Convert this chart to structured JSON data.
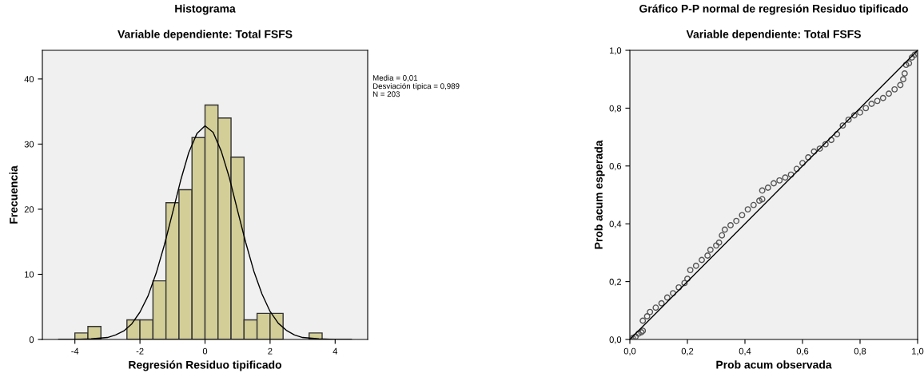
{
  "chart_data": [
    {
      "type": "histogram",
      "title": "Histograma",
      "subtitle": "Variable dependiente: Total FSFS",
      "xlabel": "Regresión Residuo tipificado",
      "ylabel": "Frecuencia",
      "series": [
        {
          "color": "#d3ce97",
          "bins": [
            -4.0,
            -3.6,
            -3.2,
            -2.8,
            -2.4,
            -2.0,
            -1.6,
            -1.2,
            -0.8,
            -0.4,
            0.0,
            0.4,
            0.8,
            1.2,
            1.6,
            2.0,
            2.4,
            2.8,
            3.2,
            3.6
          ],
          "values": [
            1,
            2,
            0,
            0,
            3,
            3,
            9,
            21,
            23,
            31,
            36,
            34,
            28,
            3,
            4,
            4,
            0,
            0,
            1
          ]
        },
        {
          "type": "line",
          "color": "#000000",
          "x": [
            -4.5,
            -4.0,
            -3.5,
            -3.0,
            -2.75,
            -2.5,
            -2.25,
            -2.0,
            -1.75,
            -1.5,
            -1.25,
            -1.0,
            -0.75,
            -0.5,
            -0.25,
            0.0,
            0.25,
            0.5,
            0.75,
            1.0,
            1.25,
            1.5,
            1.75,
            2.0,
            2.25,
            2.5,
            2.75,
            3.0,
            3.5,
            4.0,
            4.5
          ],
          "values": [
            0.0,
            0.0,
            0.1,
            0.3,
            0.7,
            1.3,
            2.4,
            4.2,
            6.7,
            10.2,
            14.5,
            19.4,
            24.4,
            28.7,
            31.6,
            32.8,
            31.8,
            28.9,
            24.8,
            19.8,
            14.9,
            10.5,
            7.0,
            4.3,
            2.5,
            1.4,
            0.7,
            0.3,
            0.1,
            0.0,
            0.0
          ]
        }
      ],
      "xlim": [
        -5,
        5
      ],
      "xticks": [
        -4,
        -2,
        0,
        2,
        4
      ],
      "ylim": [
        0,
        44.4
      ],
      "yticks": [
        0,
        10,
        20,
        30,
        40
      ],
      "grid": false,
      "legend": false,
      "annotations": [
        "Media = 0,01",
        "Desviación típica = 0,989",
        "N = 203"
      ]
    },
    {
      "type": "scatter",
      "title": "Gráfico P-P normal de regresión Residuo tipificado",
      "subtitle": "Variable dependiente: Total FSFS",
      "xlabel": "Prob acum observada",
      "ylabel": "Prob acum esperada",
      "series": [
        {
          "color": "#555555",
          "marker": "circle",
          "x": [
            0.0,
            0.01,
            0.02,
            0.03,
            0.04,
            0.045,
            0.045,
            0.06,
            0.07,
            0.09,
            0.11,
            0.13,
            0.15,
            0.17,
            0.19,
            0.2,
            0.21,
            0.23,
            0.25,
            0.27,
            0.28,
            0.3,
            0.31,
            0.32,
            0.33,
            0.35,
            0.37,
            0.39,
            0.41,
            0.43,
            0.45,
            0.46,
            0.46,
            0.48,
            0.5,
            0.52,
            0.54,
            0.56,
            0.58,
            0.6,
            0.62,
            0.64,
            0.66,
            0.68,
            0.7,
            0.72,
            0.74,
            0.76,
            0.78,
            0.8,
            0.82,
            0.84,
            0.86,
            0.88,
            0.9,
            0.92,
            0.94,
            0.95,
            0.955,
            0.96,
            0.97,
            0.98,
            0.99,
            1.0
          ],
          "values": [
            0.0,
            0.005,
            0.01,
            0.02,
            0.025,
            0.03,
            0.065,
            0.08,
            0.095,
            0.11,
            0.125,
            0.145,
            0.16,
            0.18,
            0.195,
            0.21,
            0.24,
            0.255,
            0.275,
            0.29,
            0.31,
            0.325,
            0.335,
            0.36,
            0.38,
            0.395,
            0.41,
            0.43,
            0.45,
            0.465,
            0.48,
            0.485,
            0.515,
            0.525,
            0.54,
            0.55,
            0.56,
            0.57,
            0.59,
            0.61,
            0.63,
            0.65,
            0.66,
            0.675,
            0.69,
            0.71,
            0.74,
            0.76,
            0.775,
            0.785,
            0.8,
            0.815,
            0.825,
            0.835,
            0.85,
            0.865,
            0.88,
            0.9,
            0.92,
            0.95,
            0.955,
            0.975,
            0.985,
            0.99
          ]
        },
        {
          "type": "line",
          "color": "#000000",
          "marker": "none",
          "x": [
            0.0,
            1.0
          ],
          "values": [
            0.0,
            1.0
          ]
        }
      ],
      "xlim": [
        0,
        1
      ],
      "xticks": [
        {
          "value": 0,
          "label": "0,0"
        },
        {
          "value": 0.2,
          "label": "0,2"
        },
        {
          "value": 0.4,
          "label": "0,4"
        },
        {
          "value": 0.6,
          "label": "0,6"
        },
        {
          "value": 0.8,
          "label": "0,8"
        },
        {
          "value": 1,
          "label": "1,0"
        }
      ],
      "ylim": [
        0,
        1
      ],
      "yticks": [
        {
          "value": 0,
          "label": "0,0"
        },
        {
          "value": 0.2,
          "label": "0,2"
        },
        {
          "value": 0.4,
          "label": "0,4"
        },
        {
          "value": 0.6,
          "label": "0,6"
        },
        {
          "value": 0.8,
          "label": "0,8"
        },
        {
          "value": 1,
          "label": "1,0"
        }
      ],
      "grid": false,
      "legend": false
    }
  ]
}
